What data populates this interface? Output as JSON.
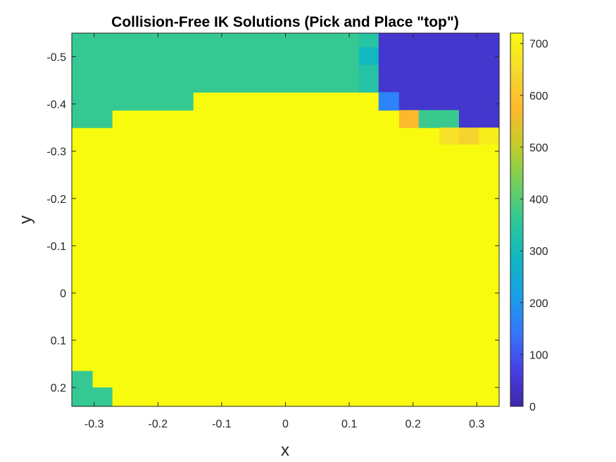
{
  "chart_data": {
    "type": "heatmap",
    "title": "Collision-Free IK Solutions (Pick and Place \"top\")",
    "xlabel": "x",
    "ylabel": "y",
    "xlim": [
      -0.335,
      0.335
    ],
    "ylim": [
      -0.55,
      0.24
    ],
    "y_direction": "reverse",
    "x_ticks": [
      -0.3,
      -0.2,
      -0.1,
      0,
      0.1,
      0.2,
      0.3
    ],
    "x_tick_labels": [
      "-0.3",
      "-0.2",
      "-0.1",
      "0",
      "0.1",
      "0.2",
      "0.3"
    ],
    "y_ticks": [
      -0.5,
      -0.4,
      -0.3,
      -0.2,
      -0.1,
      0,
      0.1,
      0.2
    ],
    "y_tick_labels": [
      "-0.5",
      "-0.4",
      "-0.3",
      "-0.2",
      "-0.1",
      "0",
      "0.1",
      "0.2"
    ],
    "colorbar": {
      "range": [
        0,
        720
      ],
      "ticks": [
        0,
        100,
        200,
        300,
        400,
        500,
        600,
        700
      ],
      "tick_labels": [
        "0",
        "100",
        "200",
        "300",
        "400",
        "500",
        "600",
        "700"
      ],
      "colormap": "parula"
    },
    "grid": false,
    "default_value": 720,
    "cells": [
      {
        "x": [
          -0.335,
          0.115
        ],
        "y": [
          -0.55,
          -0.425
        ],
        "value": 365
      },
      {
        "x": [
          -0.335,
          -0.145
        ],
        "y": [
          -0.425,
          -0.387
        ],
        "value": 365
      },
      {
        "x": [
          -0.335,
          -0.272
        ],
        "y": [
          -0.387,
          -0.35
        ],
        "value": 365
      },
      {
        "x": [
          0.115,
          0.146
        ],
        "y": [
          -0.55,
          -0.52
        ],
        "value": 340
      },
      {
        "x": [
          0.115,
          0.146
        ],
        "y": [
          -0.52,
          -0.483
        ],
        "value": 290
      },
      {
        "x": [
          0.115,
          0.146
        ],
        "y": [
          -0.483,
          -0.425
        ],
        "value": 335
      },
      {
        "x": [
          0.146,
          0.335
        ],
        "y": [
          -0.55,
          -0.425
        ],
        "value": 45
      },
      {
        "x": [
          0.146,
          0.178
        ],
        "y": [
          -0.425,
          -0.387
        ],
        "value": 165
      },
      {
        "x": [
          0.178,
          0.335
        ],
        "y": [
          -0.425,
          -0.387
        ],
        "value": 45
      },
      {
        "x": [
          0.178,
          0.209
        ],
        "y": [
          -0.387,
          -0.35
        ],
        "value": 575
      },
      {
        "x": [
          0.209,
          0.272
        ],
        "y": [
          -0.387,
          -0.35
        ],
        "value": 370
      },
      {
        "x": [
          0.272,
          0.335
        ],
        "y": [
          -0.387,
          -0.35
        ],
        "value": 45
      },
      {
        "x": [
          0.241,
          0.272
        ],
        "y": [
          -0.35,
          -0.315
        ],
        "value": 665
      },
      {
        "x": [
          0.272,
          0.303
        ],
        "y": [
          -0.35,
          -0.315
        ],
        "value": 635
      },
      {
        "x": [
          0.303,
          0.335
        ],
        "y": [
          -0.35,
          -0.315
        ],
        "value": 690
      },
      {
        "x": [
          -0.335,
          -0.303
        ],
        "y": [
          0.165,
          0.24
        ],
        "value": 365
      },
      {
        "x": [
          -0.303,
          -0.272
        ],
        "y": [
          0.2,
          0.24
        ],
        "value": 365
      }
    ]
  }
}
